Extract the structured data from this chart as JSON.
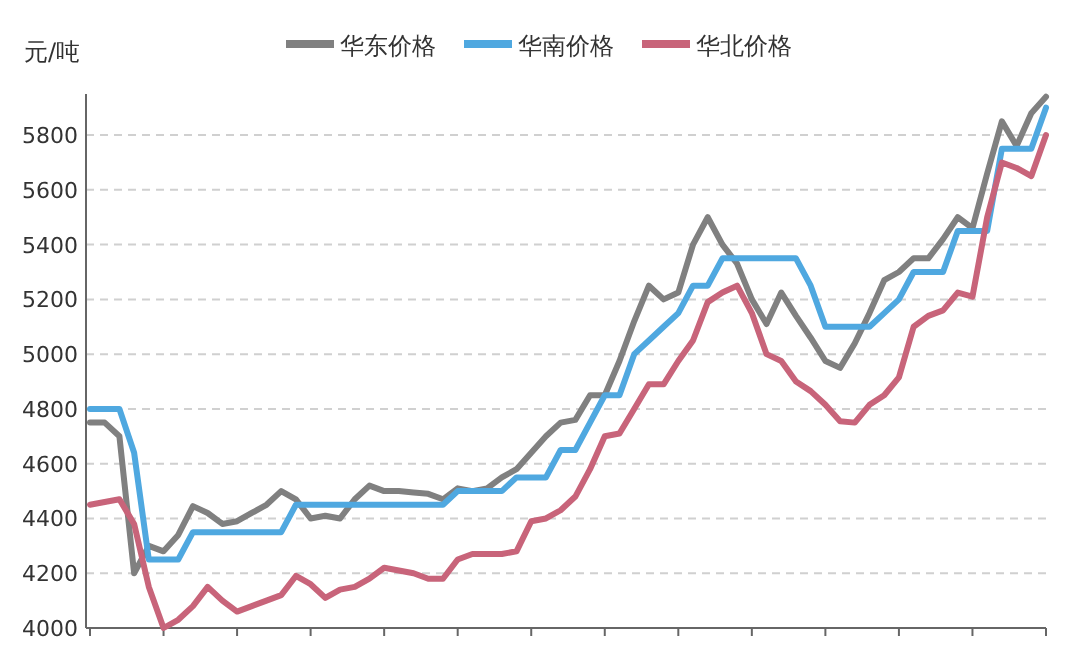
{
  "chart_data": {
    "type": "line",
    "ylabel": "元/吨",
    "categories": [
      null,
      null,
      null,
      null,
      null,
      null,
      null,
      null,
      null,
      null,
      null,
      null,
      null,
      null,
      null,
      null,
      null,
      null,
      null,
      null,
      null,
      null,
      null,
      null,
      null,
      null,
      null,
      null,
      null,
      null,
      null,
      null,
      null,
      null,
      null,
      null,
      null,
      null,
      null,
      null,
      null,
      null,
      null,
      null,
      null,
      null,
      null,
      null,
      null,
      null,
      null,
      null,
      null,
      null,
      null,
      null,
      null,
      null,
      null,
      null,
      null,
      null,
      null,
      null,
      null,
      null
    ],
    "series": [
      {
        "name": "华东价格",
        "color": "#808080",
        "values": [
          4750,
          4750,
          4700,
          4200,
          4300,
          4280,
          4340,
          4445,
          4420,
          4380,
          4390,
          4420,
          4450,
          4500,
          4470,
          4400,
          4410,
          4400,
          4470,
          4520,
          4500,
          4500,
          4495,
          4490,
          4470,
          4510,
          4500,
          4510,
          4550,
          4580,
          4640,
          4700,
          4750,
          4760,
          4850,
          4850,
          4975,
          5120,
          5250,
          5200,
          5225,
          5400,
          5500,
          5400,
          5330,
          5200,
          5110,
          5225,
          5140,
          5060,
          4975,
          4950,
          5040,
          5150,
          5270,
          5300,
          5350,
          5350,
          5420,
          5500,
          5460,
          5660,
          5850,
          5760,
          5880,
          5940
        ]
      },
      {
        "name": "华南价格",
        "color": "#4fa8e0",
        "values": [
          4800,
          4800,
          4800,
          4640,
          4250,
          4250,
          4250,
          4350,
          4350,
          4350,
          4350,
          4350,
          4350,
          4350,
          4450,
          4450,
          4450,
          4450,
          4450,
          4450,
          4450,
          4450,
          4450,
          4450,
          4450,
          4500,
          4500,
          4500,
          4500,
          4550,
          4550,
          4550,
          4650,
          4650,
          4750,
          4850,
          4850,
          5000,
          5050,
          5100,
          5150,
          5250,
          5250,
          5350,
          5350,
          5350,
          5350,
          5350,
          5350,
          5250,
          5100,
          5100,
          5100,
          5100,
          5150,
          5200,
          5300,
          5300,
          5300,
          5450,
          5450,
          5450,
          5750,
          5750,
          5750,
          5900
        ]
      },
      {
        "name": "华北价格",
        "color": "#c8647a",
        "values": [
          4450,
          4460,
          4470,
          4380,
          4150,
          4000,
          4030,
          4080,
          4150,
          4100,
          4060,
          4080,
          4100,
          4120,
          4190,
          4160,
          4110,
          4140,
          4150,
          4180,
          4220,
          4210,
          4200,
          4180,
          4180,
          4250,
          4270,
          4270,
          4270,
          4280,
          4390,
          4400,
          4430,
          4480,
          4580,
          4700,
          4710,
          4800,
          4890,
          4890,
          4975,
          5050,
          5190,
          5225,
          5250,
          5150,
          5000,
          4975,
          4900,
          4865,
          4815,
          4755,
          4750,
          4815,
          4850,
          4915,
          5100,
          5140,
          5160,
          5225,
          5210,
          5500,
          5700,
          5680,
          5650,
          5800
        ]
      }
    ],
    "ylim": [
      4000,
      5950
    ],
    "yticks": [
      4000,
      4200,
      4400,
      4600,
      4800,
      5000,
      5200,
      5400,
      5600,
      5800
    ],
    "grid": "y",
    "legend": "top",
    "marker": "none",
    "line_style": "solid"
  }
}
